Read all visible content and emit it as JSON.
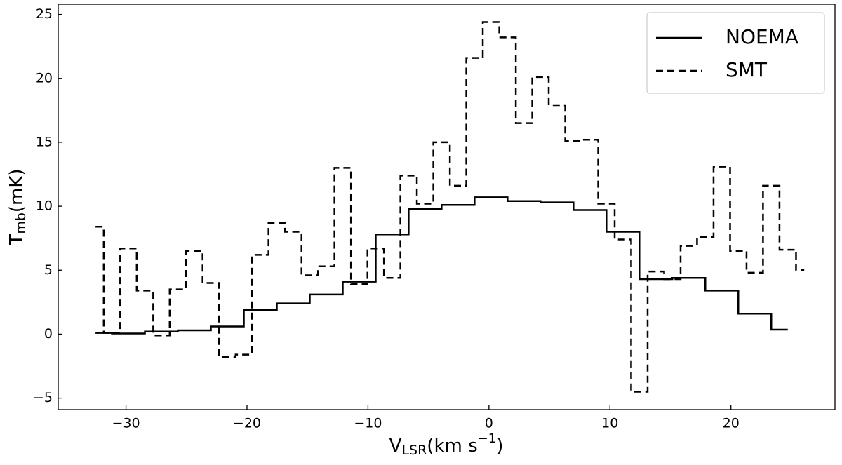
{
  "chart_data": {
    "type": "step",
    "step_where": "mid",
    "xlabel": {
      "main": "V",
      "sub": "LSR",
      "rest": "(km s",
      "sup": "−1",
      "end": ")"
    },
    "ylabel": {
      "main": "T",
      "sub": "mb",
      "rest": "(mK)"
    },
    "xlim": [
      -35.6,
      28.6
    ],
    "ylim": [
      -5.9,
      25.8
    ],
    "xticks": [
      {
        "value": -30,
        "label": "−30"
      },
      {
        "value": -20,
        "label": "−20"
      },
      {
        "value": -10,
        "label": "−10"
      },
      0,
      10,
      20
    ],
    "yticks": [
      {
        "value": -5,
        "label": "−5"
      },
      0,
      5,
      10,
      15,
      20,
      25
    ],
    "legend": "upper right",
    "series": [
      {
        "name": "NOEMA",
        "color": "#000000",
        "dash": "solid",
        "x": [
          -32.52,
          -29.8,
          -27.07,
          -24.35,
          -21.62,
          -18.9,
          -16.17,
          -13.45,
          -10.72,
          -8.0,
          -5.28,
          -2.55,
          0.17,
          2.9,
          5.62,
          8.35,
          11.07,
          13.8,
          16.52,
          19.25,
          21.97,
          24.7
        ],
        "values": [
          0.1,
          0.05,
          0.2,
          0.3,
          0.6,
          1.9,
          2.4,
          3.1,
          4.1,
          7.8,
          9.8,
          10.1,
          10.7,
          10.4,
          10.3,
          9.7,
          8.0,
          4.3,
          4.4,
          3.4,
          1.6,
          0.35
        ]
      },
      {
        "name": "SMT",
        "color": "#000000",
        "dash": "dashed",
        "x": [
          -32.52,
          -31.16,
          -29.8,
          -28.43,
          -27.07,
          -25.71,
          -24.35,
          -22.99,
          -21.62,
          -20.26,
          -18.9,
          -17.54,
          -16.17,
          -14.81,
          -13.45,
          -12.09,
          -10.72,
          -9.36,
          -8.0,
          -6.64,
          -5.28,
          -3.91,
          -2.55,
          -1.19,
          0.17,
          1.54,
          2.9,
          4.26,
          5.62,
          6.99,
          8.35,
          9.71,
          11.07,
          12.43,
          13.8,
          15.16,
          16.52,
          17.88,
          19.25,
          20.61,
          21.97,
          23.33,
          24.7,
          26.06
        ],
        "values": [
          8.4,
          0.1,
          6.7,
          3.4,
          -0.1,
          3.5,
          6.5,
          4.0,
          -1.8,
          -1.6,
          6.2,
          8.7,
          8.0,
          4.6,
          5.3,
          13.0,
          3.9,
          6.7,
          4.4,
          12.4,
          10.2,
          15.0,
          11.6,
          21.6,
          24.4,
          23.2,
          16.5,
          20.1,
          17.9,
          15.1,
          15.2,
          10.2,
          7.4,
          -4.5,
          4.9,
          4.3,
          6.9,
          7.6,
          13.1,
          6.5,
          4.8,
          11.6,
          6.6,
          5.0
        ]
      }
    ]
  }
}
